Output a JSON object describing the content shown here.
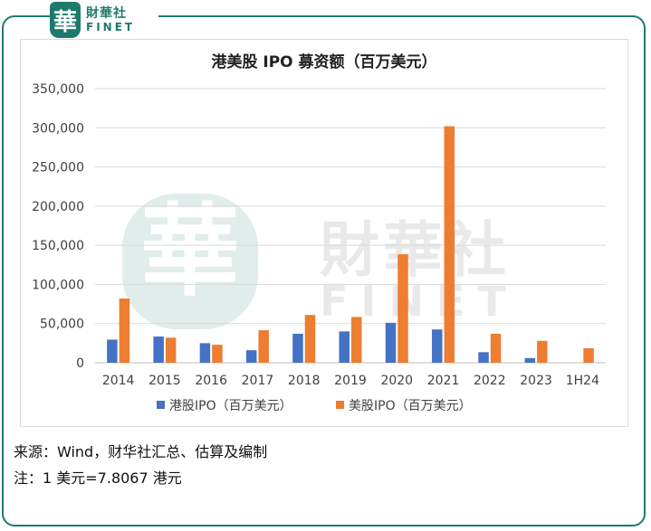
{
  "logo": {
    "badge_char": "華",
    "name_cn": "財華社",
    "name_en": "FINET"
  },
  "watermark": {
    "badge_char": "華",
    "name_cn": "財華社",
    "name_en": "FINET"
  },
  "colors": {
    "hk": "#4472C4",
    "us": "#ED7D31",
    "frame": "#1f7a6e"
  },
  "chart_data": {
    "type": "bar",
    "title": "港美股 IPO 募资额（百万美元）",
    "xlabel": "",
    "ylabel": "",
    "ylim": [
      0,
      350000
    ],
    "yticks": [
      "0",
      "50,000",
      "100,000",
      "150,000",
      "200,000",
      "250,000",
      "300,000",
      "350,000"
    ],
    "ytick_values": [
      0,
      50000,
      100000,
      150000,
      200000,
      250000,
      300000,
      350000
    ],
    "grid": true,
    "legend_position": "bottom",
    "categories": [
      "2014",
      "2015",
      "2016",
      "2017",
      "2018",
      "2019",
      "2020",
      "2021",
      "2022",
      "2023",
      "1H24"
    ],
    "series": [
      {
        "name": "港股IPO（百万美元）",
        "values": [
          29500,
          33500,
          25000,
          16000,
          37000,
          40000,
          51000,
          42500,
          13500,
          6000,
          0
        ]
      },
      {
        "name": "美股IPO（百万美元）",
        "values": [
          82000,
          32000,
          23000,
          41500,
          61000,
          58500,
          138500,
          302000,
          37000,
          28000,
          18500
        ]
      }
    ]
  },
  "notes": {
    "source": "来源：Wind，财华社汇总、估算及编制",
    "footnote": "注：1 美元=7.8067 港元"
  }
}
